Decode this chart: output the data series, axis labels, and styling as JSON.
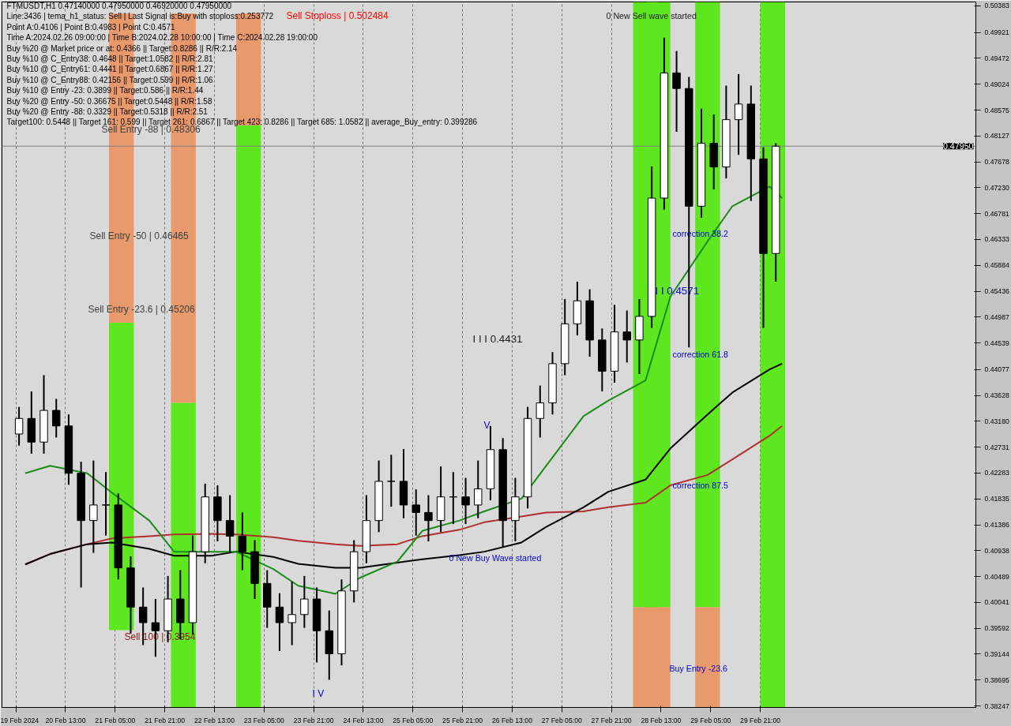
{
  "chart_data": {
    "type": "candlestick",
    "title": "FTMUSDT,H1  0.47140000 0.47950000 0.46920000 0.47950000",
    "annotations": [
      "Line:3436 | tema_h1_status: Sell | Last Signal is:Buy with stoploss:0.253772",
      "Point A:0.4106 | Point B:0.4983 | Point C:0.4571",
      "Time A:2024.02.26 09:00:00 | Time B:2024.02.28 10:00:00 | Time C:2024.02.28 19:00:00",
      "Buy %20 @ Market price or at: 0.4366 || Target:0.8286 || R/R:2.14",
      "Buy %10 @ C_Entry38: 0.4648 || Target:1.0582 || R/R:2.81",
      "Buy %10 @ C_Entry61: 0.4441 || Target:0.6867 || R/R:1.27",
      "Buy %10 @ C_Entry88: 0.42156 || Target:0.599 || R/R:1.06",
      "Buy %10 @ Entry -23: 0.3899 || Target:0.586 || R/R:1.44",
      "Buy %20 @ Entry -50: 0.36675 || Target:0.5448 || R/R:1.58",
      "Buy %20 @ Entry -88: 0.3329 || Target:0.5318 || R/R:2.51",
      "Target100: 0.5448 || Target 161: 0.599 || Target 261: 0.6867 || Target 423: 0.8286 || Target 685: 1.0582 || average_Buy_entry: 0.399286",
      "Sell Stoploss | 0.502484",
      "Sell Entry -88 | 0.48306",
      "Sell Entry -50 | 0.46465",
      "Sell Entry -23.6 | 0.45206",
      "Sell 100 | 0.3954",
      "0 New Sell wave started",
      "0 New Buy Wave started",
      "correction 38.2",
      "correction 61.8",
      "correction 87.5",
      "Buy Entry -23.6",
      "I I I 0.4431",
      "I I 0.4571",
      "I V",
      "V"
    ],
    "xlim": [
      "2024-02-19T16:30",
      "2024-03-03T18:30"
    ],
    "ylim": [
      0.3822,
      0.5045
    ],
    "xticks": [
      {
        "value": "2024-02-19T21:00",
        "label": "19 Feb 2024"
      },
      {
        "value": "2024-02-20T13:00",
        "label": "20 Feb 13:00"
      },
      {
        "value": "2024-02-21T05:00",
        "label": "21 Feb 05:00"
      },
      {
        "value": "2024-02-21T21:00",
        "label": "21 Feb 21:00"
      },
      {
        "value": "2024-02-22T13:00",
        "label": "22 Feb 13:00"
      },
      {
        "value": "2024-02-23T05:00",
        "label": "23 Feb 05:00"
      },
      {
        "value": "2024-02-23T21:00",
        "label": "23 Feb 21:00"
      },
      {
        "value": "2024-02-24T13:00",
        "label": "24 Feb 13:00"
      },
      {
        "value": "2024-02-25T05:00",
        "label": "25 Feb 05:00"
      },
      {
        "value": "2024-02-25T21:00",
        "label": "25 Feb 21:00"
      },
      {
        "value": "2024-02-26T13:00",
        "label": "26 Feb 13:00"
      },
      {
        "value": "2024-02-27T05:00",
        "label": "27 Feb 05:00"
      },
      {
        "value": "2024-02-27T21:00",
        "label": "27 Feb 21:00"
      },
      {
        "value": "2024-02-28T13:00",
        "label": "28 Feb 13:00"
      },
      {
        "value": "2024-02-29T05:00",
        "label": "29 Feb 05:00"
      },
      {
        "value": "2024-02-29T21:00",
        "label": "29 Feb 21:00"
      }
    ],
    "yticks": [
      0.50383,
      0.49921,
      0.49472,
      0.49024,
      0.48575,
      0.48127,
      0.47678,
      {
        "value": 0.4723,
        "label": "0.47230"
      },
      0.46781,
      0.46333,
      0.45884,
      0.45436,
      0.44987,
      0.44539,
      0.44077,
      0.43628,
      {
        "value": 0.4318,
        "label": "0.43180"
      },
      0.42731,
      0.42283,
      0.41835,
      0.41386,
      0.40938,
      0.40489,
      0.40041,
      0.39592,
      0.39144,
      0.38695,
      0.38247
    ],
    "grid": "x",
    "ref_lines": [
      {
        "axis": "y",
        "value": 0.4795,
        "label": "0.47950",
        "color": "#808080"
      }
    ],
    "x": [
      "2024-02-19T22:00",
      "2024-02-20T02:00",
      "2024-02-20T06:00",
      "2024-02-20T10:00",
      "2024-02-20T14:00",
      "2024-02-20T18:00",
      "2024-02-20T22:00",
      "2024-02-21T02:00",
      "2024-02-21T06:00",
      "2024-02-21T10:00",
      "2024-02-21T14:00",
      "2024-02-21T18:00",
      "2024-02-21T22:00",
      "2024-02-22T02:00",
      "2024-02-22T06:00",
      "2024-02-22T10:00",
      "2024-02-22T14:00",
      "2024-02-22T18:00",
      "2024-02-22T22:00",
      "2024-02-23T02:00",
      "2024-02-23T06:00",
      "2024-02-23T10:00",
      "2024-02-23T14:00",
      "2024-02-23T18:00",
      "2024-02-23T22:00",
      "2024-02-24T02:00",
      "2024-02-24T06:00",
      "2024-02-24T10:00",
      "2024-02-24T14:00",
      "2024-02-24T18:00",
      "2024-02-24T22:00",
      "2024-02-25T02:00",
      "2024-02-25T06:00",
      "2024-02-25T10:00",
      "2024-02-25T14:00",
      "2024-02-25T18:00",
      "2024-02-25T22:00",
      "2024-02-26T02:00",
      "2024-02-26T06:00",
      "2024-02-26T10:00",
      "2024-02-26T14:00",
      "2024-02-26T18:00",
      "2024-02-26T22:00",
      "2024-02-27T02:00",
      "2024-02-27T06:00",
      "2024-02-27T10:00",
      "2024-02-27T14:00",
      "2024-02-27T18:00",
      "2024-02-27T22:00",
      "2024-02-28T02:00",
      "2024-02-28T06:00",
      "2024-02-28T10:00",
      "2024-02-28T14:00",
      "2024-02-28T18:00",
      "2024-02-28T22:00",
      "2024-02-29T02:00",
      "2024-02-29T06:00",
      "2024-02-29T10:00",
      "2024-02-29T14:00",
      "2024-02-29T18:00",
      "2024-02-29T22:00",
      "2024-03-01T02:00"
    ],
    "ohlc": [
      [
        0.4296,
        0.4343,
        0.4276,
        0.4323
      ],
      [
        0.4323,
        0.437,
        0.4262,
        0.4282
      ],
      [
        0.4282,
        0.4398,
        0.4262,
        0.4337
      ],
      [
        0.4337,
        0.4357,
        0.429,
        0.431
      ],
      [
        0.431,
        0.433,
        0.4208,
        0.4228
      ],
      [
        0.4228,
        0.4248,
        0.403,
        0.4146
      ],
      [
        0.4146,
        0.425,
        0.409,
        0.4173
      ],
      [
        0.4173,
        0.423,
        0.412,
        0.4173
      ],
      [
        0.4173,
        0.4193,
        0.4044,
        0.4064
      ],
      [
        0.4064,
        0.4084,
        0.395,
        0.3996
      ],
      [
        0.3996,
        0.403,
        0.393,
        0.3969
      ],
      [
        0.3969,
        0.401,
        0.391,
        0.3955
      ],
      [
        0.3955,
        0.405,
        0.3935,
        0.401
      ],
      [
        0.401,
        0.406,
        0.394,
        0.3969
      ],
      [
        0.3969,
        0.412,
        0.3949,
        0.4092
      ],
      [
        0.4092,
        0.421,
        0.4072,
        0.4187
      ],
      [
        0.4187,
        0.4207,
        0.411,
        0.4146
      ],
      [
        0.4146,
        0.419,
        0.409,
        0.4119
      ],
      [
        0.4119,
        0.416,
        0.406,
        0.4092
      ],
      [
        0.4092,
        0.4112,
        0.401,
        0.4037
      ],
      [
        0.4037,
        0.406,
        0.396,
        0.3996
      ],
      [
        0.3996,
        0.402,
        0.392,
        0.3969
      ],
      [
        0.3969,
        0.404,
        0.393,
        0.3983
      ],
      [
        0.3983,
        0.405,
        0.396,
        0.401
      ],
      [
        0.401,
        0.403,
        0.39,
        0.3955
      ],
      [
        0.3955,
        0.399,
        0.387,
        0.3915
      ],
      [
        0.3915,
        0.4044,
        0.3895,
        0.4024
      ],
      [
        0.4024,
        0.4112,
        0.4004,
        0.4092
      ],
      [
        0.4092,
        0.419,
        0.4072,
        0.4146
      ],
      [
        0.4146,
        0.425,
        0.4126,
        0.4214
      ],
      [
        0.4214,
        0.426,
        0.417,
        0.4214
      ],
      [
        0.4214,
        0.427,
        0.415,
        0.4173
      ],
      [
        0.4173,
        0.42,
        0.412,
        0.416
      ],
      [
        0.416,
        0.419,
        0.411,
        0.4146
      ],
      [
        0.4146,
        0.424,
        0.4126,
        0.4187
      ],
      [
        0.4187,
        0.423,
        0.414,
        0.4187
      ],
      [
        0.4187,
        0.422,
        0.414,
        0.4173
      ],
      [
        0.4173,
        0.425,
        0.415,
        0.4201
      ],
      [
        0.4201,
        0.431,
        0.4181,
        0.4269
      ],
      [
        0.4269,
        0.4289,
        0.41,
        0.4146
      ],
      [
        0.4146,
        0.422,
        0.411,
        0.4187
      ],
      [
        0.4187,
        0.4343,
        0.4167,
        0.4323
      ],
      [
        0.4323,
        0.438,
        0.429,
        0.435
      ],
      [
        0.435,
        0.4438,
        0.433,
        0.4418
      ],
      [
        0.4418,
        0.453,
        0.4398,
        0.4487
      ],
      [
        0.4487,
        0.456,
        0.4467,
        0.4527
      ],
      [
        0.4527,
        0.4547,
        0.443,
        0.4459
      ],
      [
        0.4459,
        0.4479,
        0.437,
        0.4405
      ],
      [
        0.4405,
        0.452,
        0.4385,
        0.4473
      ],
      [
        0.4473,
        0.451,
        0.442,
        0.4459
      ],
      [
        0.4459,
        0.453,
        0.44,
        0.45
      ],
      [
        0.45,
        0.476,
        0.448,
        0.4705
      ],
      [
        0.4705,
        0.4983,
        0.4685,
        0.4922
      ],
      [
        0.4922,
        0.496,
        0.482,
        0.4895
      ],
      [
        0.4895,
        0.4915,
        0.4446,
        0.4691
      ],
      [
        0.4691,
        0.486,
        0.4671,
        0.48
      ],
      [
        0.48,
        0.485,
        0.472,
        0.4759
      ],
      [
        0.4759,
        0.49,
        0.4739,
        0.4841
      ],
      [
        0.4841,
        0.492,
        0.478,
        0.4868
      ],
      [
        0.4868,
        0.49,
        0.47,
        0.4773
      ],
      [
        0.4773,
        0.4793,
        0.448,
        0.4609
      ],
      [
        0.4609,
        0.48,
        0.456,
        0.4795
      ]
    ],
    "series": [
      {
        "type": "bar",
        "color": "#e99a6c",
        "x": [
          "2024-02-21T07:00",
          "2024-02-22T03:00",
          "2024-02-23T00:00",
          "2024-02-28T08:00",
          "2024-02-28T12:00",
          "2024-02-29T04:00"
        ],
        "base": [
          0.4489,
          0.435,
          0.4831,
          0.3822,
          0.3822,
          0.3822
        ],
        "values": [
          0.0536,
          0.0675,
          0.0194,
          0.0174,
          0.0174,
          0.0174
        ]
      },
      {
        "type": "bar",
        "color": "#5ee61e",
        "x": [
          "2024-02-21T07:00",
          "2024-02-22T03:00",
          "2024-02-23T00:00",
          "2024-02-28T08:00",
          "2024-02-28T12:00",
          "2024-02-29T04:00",
          "2024-03-01T01:00"
        ],
        "base": [
          0.3956,
          0.3822,
          0.3822,
          0.3996,
          0.3996,
          0.3996,
          0.3822
        ],
        "values": [
          0.0533,
          0.0528,
          0.1009,
          0.1049,
          0.1049,
          0.1049,
          0.1223
        ]
      },
      {
        "type": "line",
        "color": "#b03030",
        "x": [
          "2024-02-20T00:00",
          "2024-02-20T08:00",
          "2024-02-20T20:00",
          "2024-02-21T04:00",
          "2024-02-21T16:00",
          "2024-02-22T00:00",
          "2024-02-22T12:00",
          "2024-02-22T20:00",
          "2024-02-23T08:00",
          "2024-02-23T16:00",
          "2024-02-24T04:00",
          "2024-02-24T12:00",
          "2024-02-25T00:00",
          "2024-02-25T08:00",
          "2024-02-25T20:00",
          "2024-02-26T04:00",
          "2024-02-26T16:00",
          "2024-02-27T00:00",
          "2024-02-27T12:00",
          "2024-02-27T20:00",
          "2024-02-28T08:00",
          "2024-02-28T16:00",
          "2024-02-29T04:00",
          "2024-02-29T12:00",
          "2024-03-01T00:00",
          "2024-03-01T04:00"
        ],
        "values": [
          0.407,
          0.4088,
          0.4105,
          0.4115,
          0.4119,
          0.4122,
          0.4123,
          0.4122,
          0.4117,
          0.4111,
          0.4105,
          0.4102,
          0.4105,
          0.4119,
          0.413,
          0.4143,
          0.4153,
          0.416,
          0.4162,
          0.4169,
          0.4177,
          0.4207,
          0.4225,
          0.4252,
          0.4293,
          0.431
        ]
      },
      {
        "type": "line",
        "color": "#000000",
        "x": [
          "2024-02-20T00:00",
          "2024-02-20T08:00",
          "2024-02-20T20:00",
          "2024-02-21T04:00",
          "2024-02-21T16:00",
          "2024-02-22T00:00",
          "2024-02-22T12:00",
          "2024-02-22T20:00",
          "2024-02-23T08:00",
          "2024-02-23T16:00",
          "2024-02-24T04:00",
          "2024-02-24T12:00",
          "2024-02-25T00:00",
          "2024-02-25T08:00",
          "2024-02-25T20:00",
          "2024-02-26T04:00",
          "2024-02-26T16:00",
          "2024-02-27T00:00",
          "2024-02-27T12:00",
          "2024-02-27T20:00",
          "2024-02-28T08:00",
          "2024-02-28T16:00",
          "2024-02-29T04:00",
          "2024-02-29T12:00",
          "2024-03-01T00:00",
          "2024-03-01T04:00"
        ],
        "values": [
          0.407,
          0.4088,
          0.4105,
          0.4108,
          0.4097,
          0.4085,
          0.4085,
          0.4092,
          0.4083,
          0.4071,
          0.4064,
          0.4064,
          0.4073,
          0.4079,
          0.4086,
          0.4092,
          0.4108,
          0.4135,
          0.4169,
          0.4196,
          0.4217,
          0.4271,
          0.433,
          0.4368,
          0.4408,
          0.4418
        ]
      },
      {
        "type": "line",
        "color": "#1a8c1a",
        "x": [
          "2024-02-20T00:00",
          "2024-02-20T08:00",
          "2024-02-20T20:00",
          "2024-02-21T04:00",
          "2024-02-21T16:00",
          "2024-02-22T00:00",
          "2024-02-22T12:00",
          "2024-02-22T20:00",
          "2024-02-23T08:00",
          "2024-02-23T16:00",
          "2024-02-24T04:00",
          "2024-02-24T12:00",
          "2024-02-25T00:00",
          "2024-02-25T08:00",
          "2024-02-25T20:00",
          "2024-02-26T04:00",
          "2024-02-26T16:00",
          "2024-02-27T00:00",
          "2024-02-27T12:00",
          "2024-02-27T20:00",
          "2024-02-28T08:00",
          "2024-02-28T16:00",
          "2024-02-29T04:00",
          "2024-02-29T12:00",
          "2024-03-01T00:00",
          "2024-03-01T04:00"
        ],
        "values": [
          0.4228,
          0.4241,
          0.4228,
          0.4194,
          0.4146,
          0.4092,
          0.4092,
          0.4092,
          0.4062,
          0.4033,
          0.4019,
          0.4047,
          0.4075,
          0.4128,
          0.4146,
          0.4162,
          0.4184,
          0.4241,
          0.4327,
          0.4354,
          0.4389,
          0.4534,
          0.463,
          0.4691,
          0.4725,
          0.4705
        ]
      }
    ]
  }
}
